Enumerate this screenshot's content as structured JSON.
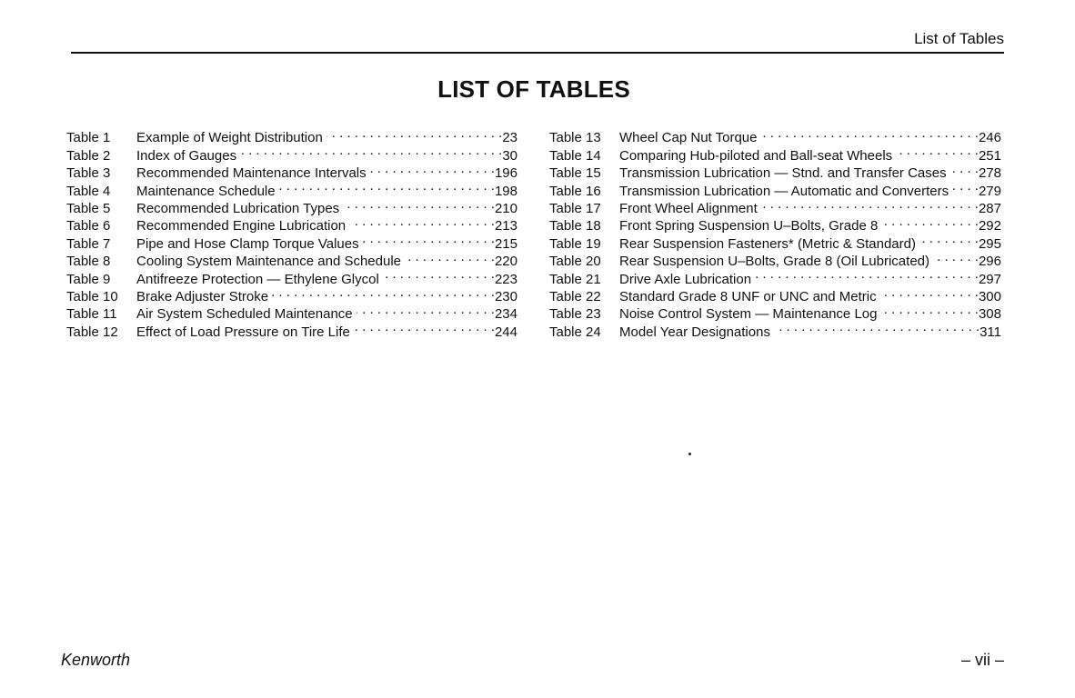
{
  "header": {
    "running_head": "List of Tables"
  },
  "title": "LIST OF TABLES",
  "left_entries": [
    {
      "label": "Table 1",
      "title": "Example of Weight Distribution",
      "page": "23"
    },
    {
      "label": "Table 2",
      "title": "Index of Gauges",
      "page": "30"
    },
    {
      "label": "Table 3",
      "title": "Recommended Maintenance Intervals",
      "page": "196"
    },
    {
      "label": "Table 4",
      "title": "Maintenance Schedule",
      "page": "198"
    },
    {
      "label": "Table 5",
      "title": "Recommended Lubrication Types",
      "page": "210"
    },
    {
      "label": "Table 6",
      "title": "Recommended Engine Lubrication",
      "page": "213"
    },
    {
      "label": "Table 7",
      "title": "Pipe and Hose Clamp Torque Values",
      "page": "215"
    },
    {
      "label": "Table 8",
      "title": "Cooling System Maintenance and Schedule",
      "page": "220"
    },
    {
      "label": "Table 9",
      "title": "Antifreeze Protection — Ethylene Glycol",
      "page": "223"
    },
    {
      "label": "Table 10",
      "title": "Brake Adjuster Stroke",
      "page": "230"
    },
    {
      "label": "Table 11",
      "title": "Air System Scheduled Maintenance",
      "page": "234"
    },
    {
      "label": "Table 12",
      "title": "Effect of Load Pressure on Tire Life",
      "page": "244"
    }
  ],
  "right_entries": [
    {
      "label": "Table 13",
      "title": "Wheel Cap Nut Torque",
      "page": "246"
    },
    {
      "label": "Table 14",
      "title": "Comparing Hub-piloted and Ball-seat Wheels",
      "page": "251"
    },
    {
      "label": "Table 15",
      "title": "Transmission Lubrication — Stnd. and Transfer Cases",
      "page": "278"
    },
    {
      "label": "Table 16",
      "title": "Transmission Lubrication — Automatic and Converters",
      "page": "279"
    },
    {
      "label": "Table 17",
      "title": "Front Wheel Alignment",
      "page": "287"
    },
    {
      "label": "Table 18",
      "title": "Front Spring Suspension U–Bolts, Grade 8",
      "page": "292"
    },
    {
      "label": "Table 19",
      "title": "Rear Suspension Fasteners* (Metric & Standard)",
      "page": "295"
    },
    {
      "label": "Table 20",
      "title": "Rear Suspension U–Bolts, Grade 8 (Oil Lubricated)",
      "page": "296"
    },
    {
      "label": "Table 21",
      "title": "Drive Axle Lubrication",
      "page": "297"
    },
    {
      "label": "Table 22",
      "title": "Standard Grade 8 UNF or UNC and Metric",
      "page": "300"
    },
    {
      "label": "Table 23",
      "title": "Noise Control System — Maintenance Log",
      "page": "308"
    },
    {
      "label": "Table 24",
      "title": "Model Year Designations",
      "page": "311"
    }
  ],
  "footer": {
    "brand": "Kenworth",
    "page_number": "– vii –"
  }
}
